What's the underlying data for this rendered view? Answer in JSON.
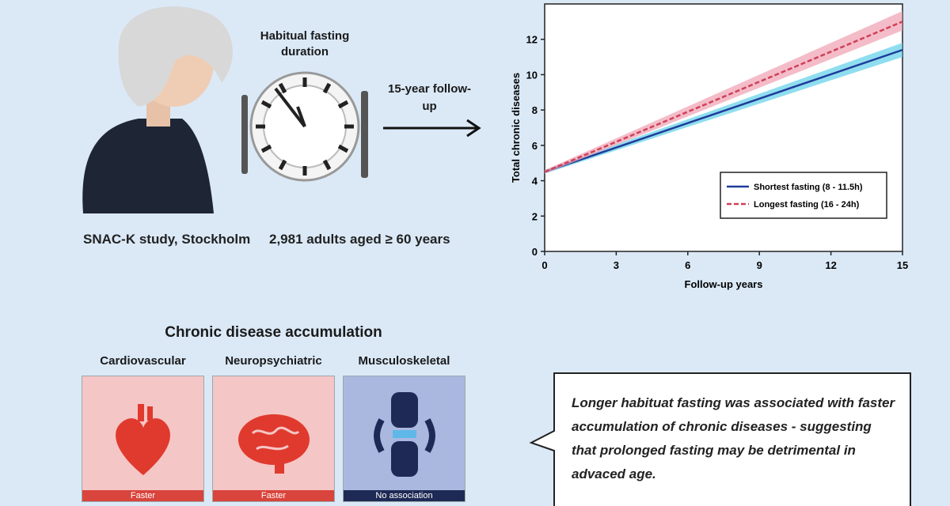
{
  "study": {
    "fasting_label": "Habitual fasting duration",
    "followup_label": "15-year follow-up",
    "study_name": "SNAC-K study, Stockholm",
    "participants": "2,981 adults aged ≥ 60 years"
  },
  "chart_data": {
    "type": "line",
    "x_label": "Follow-up years",
    "y_label": "Total chronic diseases",
    "x": [
      0,
      15
    ],
    "xlim": [
      0,
      15
    ],
    "xticks": [
      0,
      3,
      6,
      9,
      12,
      15
    ],
    "ylim": [
      0,
      14
    ],
    "yticks": [
      0,
      2,
      4,
      6,
      8,
      10,
      12
    ],
    "legend": "lower right",
    "series": [
      {
        "name": "Shortest fasting (8 - 11.5h)",
        "color": "#1f3c9a",
        "band_color": "#5fd0e8",
        "values": [
          4.5,
          11.4
        ],
        "lower": [
          4.4,
          11.0
        ],
        "upper": [
          4.6,
          11.8
        ]
      },
      {
        "name": "Longest fasting (16 - 24h)",
        "color": "#d0405a",
        "band_color": "#f0a0b0",
        "values": [
          4.5,
          13.0
        ],
        "lower": [
          4.4,
          12.5
        ],
        "upper": [
          4.6,
          13.6
        ]
      }
    ]
  },
  "diseases": {
    "title": "Chronic disease accumulation",
    "categories": [
      {
        "name": "Cardiovascular",
        "result": "Faster"
      },
      {
        "name": "Neuropsychiatric",
        "result": "Faster"
      },
      {
        "name": "Musculoskeletal",
        "result": "No association"
      }
    ]
  },
  "conclusion": "Longer habituat fasting was associated with faster accumulation of chronic diseases - suggesting that prolonged fasting may be detrimental in advaced age."
}
